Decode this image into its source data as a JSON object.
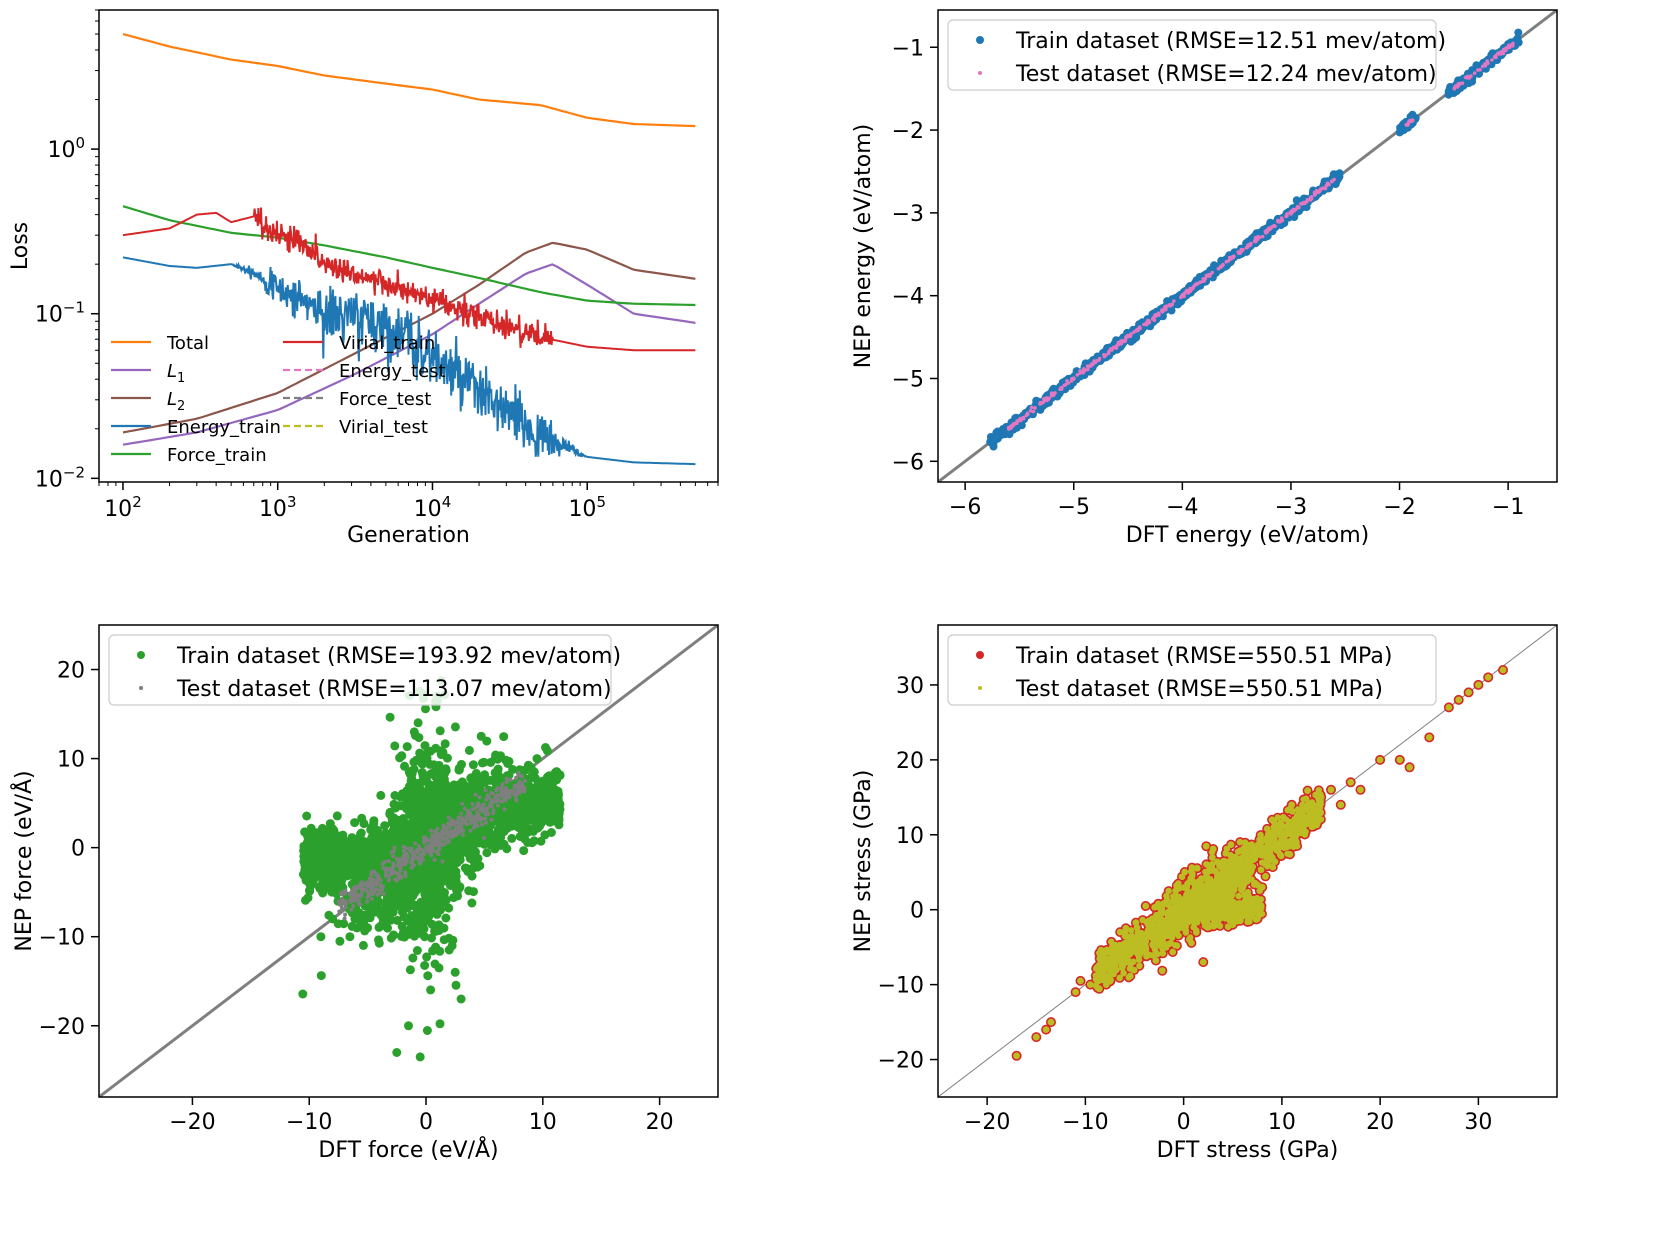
{
  "chart_data": [
    {
      "type": "line",
      "xlabel": "Generation",
      "ylabel": "Loss",
      "xscale": "log",
      "yscale": "log",
      "xlim": [
        70,
        700000
      ],
      "ylim": [
        0.0095,
        7
      ],
      "xticks": [
        100,
        1000,
        10000,
        100000
      ],
      "yticks": [
        0.01,
        0.1,
        1
      ],
      "legend": {
        "placement": "lower-left",
        "columns": 2
      },
      "series": [
        {
          "name": "Total",
          "color": "#ff7f0e",
          "style": "solid",
          "x": [
            100,
            200,
            500,
            1000,
            2000,
            5000,
            10000,
            20000,
            50000,
            100000,
            200000,
            500000
          ],
          "y": [
            5.0,
            4.2,
            3.5,
            3.2,
            2.8,
            2.5,
            2.3,
            2.0,
            1.85,
            1.55,
            1.42,
            1.38
          ]
        },
        {
          "name": "L_1",
          "label_main": "L",
          "label_sub": "1",
          "color": "#9467bd",
          "style": "solid",
          "x": [
            100,
            300,
            1000,
            3000,
            10000,
            20000,
            40000,
            60000,
            100000,
            200000,
            500000
          ],
          "y": [
            0.016,
            0.019,
            0.026,
            0.042,
            0.075,
            0.115,
            0.175,
            0.2,
            0.15,
            0.1,
            0.088
          ]
        },
        {
          "name": "L_2",
          "label_main": "L",
          "label_sub": "2",
          "color": "#8c564b",
          "style": "solid",
          "x": [
            100,
            300,
            1000,
            3000,
            10000,
            20000,
            40000,
            60000,
            100000,
            200000,
            500000
          ],
          "y": [
            0.019,
            0.023,
            0.033,
            0.056,
            0.1,
            0.15,
            0.235,
            0.27,
            0.245,
            0.185,
            0.163
          ]
        },
        {
          "name": "Energy_train",
          "color": "#1f77b4",
          "style": "solid",
          "x": [
            100,
            200,
            300,
            500,
            700,
            1000,
            1500,
            2000,
            3000,
            5000,
            7000,
            10000,
            15000,
            20000,
            30000,
            50000,
            100000,
            200000,
            500000
          ],
          "y": [
            0.22,
            0.195,
            0.19,
            0.2,
            0.18,
            0.14,
            0.12,
            0.1,
            0.095,
            0.085,
            0.07,
            0.055,
            0.04,
            0.033,
            0.025,
            0.018,
            0.0135,
            0.0125,
            0.0122
          ]
        },
        {
          "name": "Force_train",
          "color": "#2ca02c",
          "style": "solid",
          "x": [
            100,
            200,
            500,
            1000,
            2000,
            5000,
            10000,
            20000,
            50000,
            100000,
            200000,
            500000
          ],
          "y": [
            0.45,
            0.37,
            0.31,
            0.29,
            0.26,
            0.22,
            0.19,
            0.165,
            0.135,
            0.12,
            0.115,
            0.113
          ]
        },
        {
          "name": "Virial_train",
          "color": "#d62728",
          "style": "solid",
          "x": [
            100,
            200,
            300,
            400,
            500,
            700,
            1000,
            1500,
            2000,
            3000,
            5000,
            10000,
            20000,
            30000,
            50000,
            100000,
            200000,
            500000
          ],
          "y": [
            0.3,
            0.33,
            0.4,
            0.41,
            0.36,
            0.39,
            0.3,
            0.27,
            0.2,
            0.18,
            0.15,
            0.12,
            0.095,
            0.085,
            0.072,
            0.063,
            0.06,
            0.06
          ]
        },
        {
          "name": "Energy_test",
          "color": "#e377c2",
          "style": "dashed",
          "x": [],
          "y": []
        },
        {
          "name": "Force_test",
          "color": "#7f7f7f",
          "style": "dashed",
          "x": [],
          "y": []
        },
        {
          "name": "Virial_test",
          "color": "#bcbd22",
          "style": "dashed",
          "x": [],
          "y": []
        }
      ]
    },
    {
      "type": "scatter",
      "xlabel": "DFT energy (eV/atom)",
      "ylabel": "NEP energy (eV/atom)",
      "xlim": [
        -6.25,
        -0.55
      ],
      "ylim": [
        -6.25,
        -0.55
      ],
      "xticks": [
        -6,
        -5,
        -4,
        -3,
        -2,
        -1
      ],
      "yticks": [
        -6,
        -5,
        -4,
        -3,
        -2,
        -1
      ],
      "legend": {
        "placement": "top-left"
      },
      "diagonal": {
        "color": "#7f7f7f",
        "width": 3
      },
      "series": [
        {
          "name": "Train dataset (RMSE=12.51 mev/atom)",
          "color": "#1f77b4",
          "marker": "large",
          "segments": [
            [
              -5.77,
              -5.3
            ],
            [
              -5.3,
              -4.2
            ],
            [
              -4.2,
              -3.5
            ],
            [
              -3.5,
              -2.55
            ],
            [
              -2.0,
              -1.85
            ],
            [
              -1.55,
              -0.9
            ]
          ],
          "spread": 0.05
        },
        {
          "name": "Test dataset (RMSE=12.24 mev/atom)",
          "color": "#e377c2",
          "marker": "small",
          "segments": [
            [
              -5.6,
              -4.0
            ],
            [
              -4.0,
              -2.6
            ],
            [
              -1.95,
              -1.85
            ],
            [
              -1.5,
              -0.95
            ]
          ],
          "spread": 0.02
        }
      ]
    },
    {
      "type": "scatter",
      "xlabel": "DFT force (eV/Å)",
      "ylabel": "NEP force (eV/Å)",
      "xlim": [
        -28,
        25
      ],
      "ylim": [
        -28,
        25
      ],
      "xticks": [
        -20,
        -10,
        0,
        10,
        20
      ],
      "yticks": [
        -20,
        -10,
        0,
        10,
        20
      ],
      "legend": {
        "placement": "top-left"
      },
      "diagonal": {
        "color": "#7f7f7f",
        "width": 3
      },
      "series": [
        {
          "name": "Train dataset (RMSE=193.92 mev/atom)",
          "color": "#2ca02c",
          "marker": "large",
          "x": [
            -10.5,
            -9.5,
            -9,
            -8,
            -7,
            -6,
            -5,
            -4,
            -3,
            -2,
            -1,
            0,
            1,
            2,
            3,
            4,
            5,
            6,
            7,
            8,
            9,
            10,
            11,
            -2.5,
            -0.5,
            -1.5,
            2.5,
            3,
            1,
            -5,
            -8,
            9.5,
            10.5,
            11
          ],
          "y": [
            -3,
            -2,
            -10,
            -2.5,
            -1.5,
            -4,
            -1,
            0,
            -2,
            6,
            13,
            1,
            9,
            -2,
            1,
            6,
            5,
            6,
            8,
            7,
            9,
            4,
            3,
            -23,
            -23.5,
            -20,
            -14,
            -17,
            16.5,
            -9,
            -8,
            10,
            7,
            3.5
          ]
        },
        {
          "name": "Test dataset (RMSE=113.07 mev/atom)",
          "color": "#7f7f7f",
          "marker": "small",
          "x": [
            -7,
            -6,
            -5,
            -4,
            -3,
            -2,
            -1,
            0,
            1,
            2,
            3,
            4,
            5,
            6,
            7,
            8
          ],
          "y": [
            -6.3,
            -5.5,
            -4.4,
            -3.5,
            -2.7,
            -1.8,
            -0.9,
            0,
            0.9,
            1.8,
            2.6,
            3.5,
            4.3,
            5.2,
            6.0,
            6.8
          ]
        }
      ]
    },
    {
      "type": "scatter",
      "xlabel": "DFT stress (GPa)",
      "ylabel": "NEP stress (GPa)",
      "xlim": [
        -25,
        38
      ],
      "ylim": [
        -25,
        38
      ],
      "xticks": [
        -20,
        -10,
        0,
        10,
        20,
        30
      ],
      "yticks": [
        -20,
        -10,
        0,
        10,
        20,
        30
      ],
      "legend": {
        "placement": "top-left"
      },
      "diagonal": {
        "color": "#7f7f7f",
        "width": 1
      },
      "series": [
        {
          "name": "Train dataset (RMSE=550.51 MPa)",
          "color": "#d62728",
          "face_color": "#bcbd22",
          "marker": "edge",
          "x": [
            -17,
            -15,
            -14,
            -13.5,
            -11,
            -10.5,
            -9.5,
            -8,
            -7,
            -5,
            -3,
            0,
            2,
            4,
            5,
            6,
            7,
            8,
            9,
            10,
            11,
            12,
            13,
            14,
            15,
            16,
            17,
            18,
            20,
            22,
            23,
            25,
            27,
            28,
            29,
            30,
            31,
            32.5
          ],
          "y": [
            -19.5,
            -17,
            -16,
            -15,
            -11,
            -9.5,
            -10,
            -8,
            -6,
            -5,
            -4,
            1,
            -7,
            2,
            -2,
            4,
            7,
            3,
            12,
            10,
            14,
            13,
            12,
            15,
            16,
            14,
            17,
            16,
            20,
            20,
            19,
            23,
            27,
            28,
            29,
            30,
            31,
            32
          ]
        },
        {
          "name": "Test dataset (RMSE=550.51 MPa)",
          "color": "#bcbd22",
          "marker": "small",
          "x": [
            -9,
            -7,
            -5,
            -3,
            -1,
            1,
            3,
            5,
            7,
            9,
            11
          ],
          "y": [
            -8,
            -6.5,
            -4.5,
            -3,
            -1,
            1,
            3,
            5,
            7.5,
            9,
            11
          ]
        }
      ]
    }
  ]
}
